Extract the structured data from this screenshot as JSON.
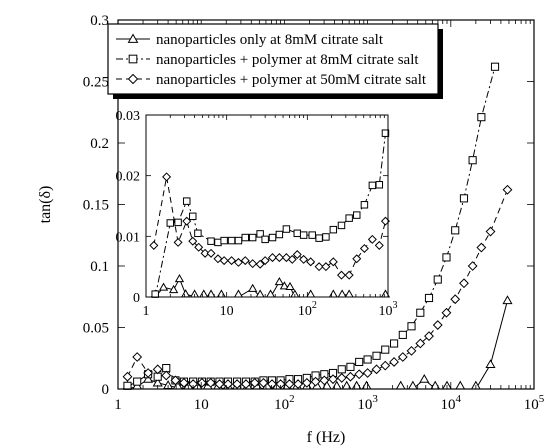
{
  "chart_data": {
    "type": "line",
    "xlabel": "f (Hz)",
    "ylabel": "tan(δ)",
    "xscale": "log",
    "yscale": "linear",
    "xlim": [
      1,
      100000
    ],
    "ylim": [
      0,
      0.3
    ],
    "x_ticks": [
      {
        "value": 1,
        "base": "1",
        "exp": ""
      },
      {
        "value": 10,
        "base": "10",
        "exp": ""
      },
      {
        "value": 100,
        "base": "10",
        "exp": "2"
      },
      {
        "value": 1000,
        "base": "10",
        "exp": "3"
      },
      {
        "value": 10000,
        "base": "10",
        "exp": "4"
      },
      {
        "value": 100000,
        "base": "10",
        "exp": "5"
      }
    ],
    "y_ticks": [
      {
        "value": 0,
        "label": "0"
      },
      {
        "value": 0.05,
        "label": "0.05"
      },
      {
        "value": 0.1,
        "label": "0.1"
      },
      {
        "value": 0.15,
        "label": "0.15"
      },
      {
        "value": 0.2,
        "label": "0.2"
      },
      {
        "value": 0.25,
        "label": "0.25"
      },
      {
        "value": 0.3,
        "label": "0.3"
      }
    ],
    "legend_position": "top-right",
    "series": [
      {
        "name": "nanoparticles only at 8mM citrate salt",
        "marker": "triangle",
        "line": "solid",
        "points": [
          [
            1.3,
            0.0
          ],
          [
            1.7,
            0.002
          ],
          [
            2.3,
            0.008
          ],
          [
            3.0,
            0.005
          ],
          [
            4.0,
            0.003
          ],
          [
            5.2,
            0.001
          ],
          [
            7.0,
            0.0
          ],
          [
            9.0,
            0.0
          ],
          [
            12,
            0.0
          ],
          [
            16,
            0.0
          ],
          [
            21,
            0.001
          ],
          [
            27,
            0.0
          ],
          [
            36,
            0.0
          ],
          [
            47,
            0.001
          ],
          [
            62,
            0.0
          ],
          [
            82,
            0.0
          ],
          [
            108,
            0.0
          ],
          [
            142,
            0.0
          ],
          [
            187,
            0.0
          ],
          [
            246,
            0.0
          ],
          [
            324,
            0.0
          ],
          [
            426,
            0.0
          ],
          [
            561,
            0.0
          ],
          [
            738,
            0.0
          ],
          [
            971,
            0.0
          ],
          [
            2500,
            0.0
          ],
          [
            3500,
            0.0
          ],
          [
            4800,
            0.008
          ],
          [
            6500,
            0.0
          ],
          [
            9000,
            0.0
          ],
          [
            13000,
            0.0
          ],
          [
            20000,
            0.0
          ],
          [
            30000,
            0.02
          ],
          [
            48000,
            0.072
          ]
        ]
      },
      {
        "name": "nanoparticles + polymer at 8mM citrate salt",
        "marker": "square",
        "line": "dashdot",
        "points": [
          [
            1.3,
            0.002
          ],
          [
            1.7,
            0.006
          ],
          [
            2.3,
            0.012
          ],
          [
            3.0,
            0.01
          ],
          [
            3.8,
            0.017
          ],
          [
            4.9,
            0.007
          ],
          [
            6.2,
            0.006
          ],
          [
            8.0,
            0.006
          ],
          [
            10.2,
            0.006
          ],
          [
            13,
            0.006
          ],
          [
            16.6,
            0.006
          ],
          [
            21,
            0.006
          ],
          [
            27,
            0.006
          ],
          [
            34.5,
            0.006
          ],
          [
            44,
            0.006
          ],
          [
            56,
            0.007
          ],
          [
            71,
            0.007
          ],
          [
            90,
            0.007
          ],
          [
            115,
            0.008
          ],
          [
            146,
            0.008
          ],
          [
            186,
            0.009
          ],
          [
            237,
            0.011
          ],
          [
            302,
            0.012
          ],
          [
            384,
            0.013
          ],
          [
            489,
            0.016
          ],
          [
            622,
            0.018
          ],
          [
            792,
            0.022
          ],
          [
            1000,
            0.024
          ],
          [
            1280,
            0.027
          ],
          [
            1630,
            0.032
          ],
          [
            2080,
            0.037
          ],
          [
            2650,
            0.044
          ],
          [
            3370,
            0.051
          ],
          [
            4300,
            0.062
          ],
          [
            5470,
            0.074
          ],
          [
            6970,
            0.089
          ],
          [
            8870,
            0.107
          ],
          [
            11300,
            0.129
          ],
          [
            14400,
            0.155
          ],
          [
            18300,
            0.186
          ],
          [
            23300,
            0.221
          ],
          [
            34000,
            0.262
          ]
        ]
      },
      {
        "name": "nanoparticles + polymer at 50mM citrate salt",
        "marker": "diamond",
        "line": "dashed",
        "points": [
          [
            1.3,
            0.01
          ],
          [
            1.7,
            0.026
          ],
          [
            2.3,
            0.013
          ],
          [
            3.0,
            0.016
          ],
          [
            3.8,
            0.011
          ],
          [
            4.9,
            0.007
          ],
          [
            6.2,
            0.005
          ],
          [
            8.0,
            0.004
          ],
          [
            10.2,
            0.005
          ],
          [
            13,
            0.005
          ],
          [
            16.6,
            0.004
          ],
          [
            21,
            0.004
          ],
          [
            27,
            0.004
          ],
          [
            34.5,
            0.004
          ],
          [
            44,
            0.005
          ],
          [
            56,
            0.005
          ],
          [
            71,
            0.004
          ],
          [
            90,
            0.004
          ],
          [
            115,
            0.004
          ],
          [
            146,
            0.004
          ],
          [
            186,
            0.005
          ],
          [
            237,
            0.006
          ],
          [
            302,
            0.007
          ],
          [
            384,
            0.008
          ],
          [
            489,
            0.009
          ],
          [
            622,
            0.01
          ],
          [
            792,
            0.012
          ],
          [
            1000,
            0.013
          ],
          [
            1280,
            0.016
          ],
          [
            1630,
            0.019
          ],
          [
            2080,
            0.022
          ],
          [
            2650,
            0.026
          ],
          [
            3370,
            0.031
          ],
          [
            4300,
            0.037
          ],
          [
            5470,
            0.043
          ],
          [
            6970,
            0.052
          ],
          [
            8870,
            0.062
          ],
          [
            11300,
            0.073
          ],
          [
            14400,
            0.086
          ],
          [
            18300,
            0.1
          ],
          [
            23300,
            0.115
          ],
          [
            30000,
            0.128
          ],
          [
            48000,
            0.162
          ]
        ]
      }
    ],
    "inset": {
      "xscale": "log",
      "xlim": [
        1,
        1000
      ],
      "ylim": [
        0,
        0.03
      ],
      "x_ticks": [
        {
          "value": 1,
          "base": "1",
          "exp": ""
        },
        {
          "value": 10,
          "base": "10",
          "exp": ""
        },
        {
          "value": 100,
          "base": "10",
          "exp": "2"
        },
        {
          "value": 1000,
          "base": "10",
          "exp": "3"
        }
      ],
      "y_ticks": [
        {
          "value": 0,
          "label": "0"
        },
        {
          "value": 0.01,
          "label": "0.01"
        },
        {
          "value": 0.02,
          "label": "0.02"
        },
        {
          "value": 0.03,
          "label": "0.03"
        }
      ],
      "series": [
        {
          "marker": "triangle",
          "line": "solid",
          "points": [
            [
              1.3,
              0.0
            ],
            [
              1.65,
              0.0016
            ],
            [
              2.2,
              0.0012
            ],
            [
              2.6,
              0.003
            ],
            [
              3.1,
              0.0005
            ],
            [
              4.0,
              0.0
            ],
            [
              5.2,
              0.0
            ],
            [
              6.4,
              0.0
            ],
            [
              8.6,
              0.0
            ],
            [
              14,
              0.0
            ],
            [
              21,
              0.0014
            ],
            [
              26,
              0.0
            ],
            [
              35,
              0.0
            ],
            [
              45,
              0.0025
            ],
            [
              52,
              0.0018
            ],
            [
              61,
              0.0017
            ],
            [
              70,
              0.0
            ],
            [
              110,
              0.0
            ],
            [
              210,
              0.0
            ],
            [
              270,
              0.0
            ],
            [
              330,
              0.0
            ],
            [
              930,
              0.0
            ]
          ]
        },
        {
          "marker": "square",
          "line": "dashdot",
          "points": [
            [
              1.3,
              0.0
            ],
            [
              2.0,
              0.0122
            ],
            [
              2.5,
              0.0123
            ],
            [
              3.2,
              0.0158
            ],
            [
              3.8,
              0.0133
            ],
            [
              4.4,
              0.0105
            ],
            [
              6.4,
              0.0092
            ],
            [
              7.8,
              0.009
            ],
            [
              9.3,
              0.0093
            ],
            [
              11.5,
              0.0093
            ],
            [
              14,
              0.0093
            ],
            [
              17,
              0.0098
            ],
            [
              21,
              0.0098
            ],
            [
              26,
              0.0104
            ],
            [
              30,
              0.0095
            ],
            [
              37,
              0.0098
            ],
            [
              45,
              0.0103
            ],
            [
              55,
              0.0112
            ],
            [
              75,
              0.0105
            ],
            [
              90,
              0.0102
            ],
            [
              115,
              0.0102
            ],
            [
              140,
              0.0097
            ],
            [
              170,
              0.0099
            ],
            [
              210,
              0.0111
            ],
            [
              265,
              0.0118
            ],
            [
              330,
              0.013
            ],
            [
              410,
              0.0135
            ],
            [
              510,
              0.0152
            ],
            [
              640,
              0.0184
            ],
            [
              780,
              0.0185
            ],
            [
              930,
              0.027
            ]
          ]
        },
        {
          "marker": "diamond",
          "line": "dashed",
          "points": [
            [
              1.25,
              0.0085
            ],
            [
              1.8,
              0.0198
            ],
            [
              2.5,
              0.009
            ],
            [
              3.2,
              0.0125
            ],
            [
              3.8,
              0.0092
            ],
            [
              4.5,
              0.0082
            ],
            [
              5.4,
              0.0072
            ],
            [
              6.4,
              0.0072
            ],
            [
              7.8,
              0.0063
            ],
            [
              9.3,
              0.006
            ],
            [
              11.5,
              0.006
            ],
            [
              14,
              0.0057
            ],
            [
              17,
              0.006
            ],
            [
              21,
              0.0055
            ],
            [
              26,
              0.0054
            ],
            [
              30,
              0.006
            ],
            [
              37,
              0.0065
            ],
            [
              45,
              0.0065
            ],
            [
              55,
              0.0065
            ],
            [
              65,
              0.0062
            ],
            [
              75,
              0.007
            ],
            [
              90,
              0.0062
            ],
            [
              110,
              0.0058
            ],
            [
              140,
              0.005
            ],
            [
              170,
              0.005
            ],
            [
              210,
              0.0058
            ],
            [
              265,
              0.0036
            ],
            [
              330,
              0.0036
            ],
            [
              410,
              0.0063
            ],
            [
              510,
              0.008
            ],
            [
              640,
              0.0095
            ],
            [
              780,
              0.0085
            ],
            [
              930,
              0.0125
            ]
          ]
        }
      ]
    }
  }
}
